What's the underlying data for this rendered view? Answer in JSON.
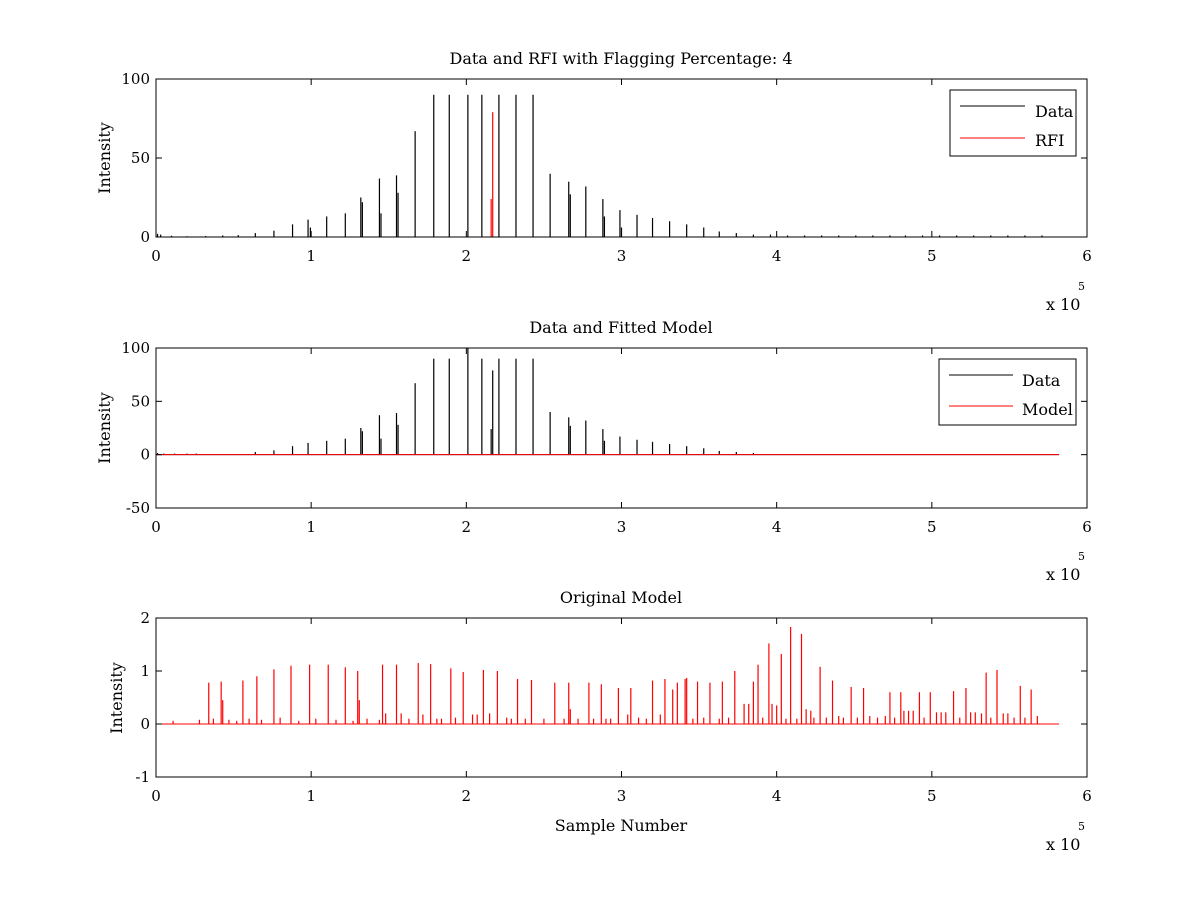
{
  "figure": {
    "background": "#ffffff",
    "axis_color": "#000000"
  },
  "chart_data": [
    {
      "type": "line",
      "title": "Data and RFI with Flagging Percentage: 4",
      "xlabel": "",
      "ylabel": "Intensity",
      "xlim": [
        0,
        600000
      ],
      "ylim": [
        0,
        100
      ],
      "xticks": [
        0,
        100000,
        200000,
        300000,
        400000,
        500000,
        600000
      ],
      "xtick_labels": [
        "0",
        "1",
        "2",
        "3",
        "4",
        "5",
        "6"
      ],
      "yticks": [
        0,
        50,
        100
      ],
      "ytick_labels": [
        "0",
        "50",
        "100"
      ],
      "x_multiplier": {
        "base": "x 10",
        "exponent": "5"
      },
      "legend": {
        "position": "top-right",
        "entries": [
          "Data",
          "RFI"
        ]
      },
      "grid": false,
      "baseline_end": 582000,
      "series": [
        {
          "name": "Data",
          "color": "#000000",
          "spikes": [
            [
              1000,
              2
            ],
            [
              3000,
              1.5
            ],
            [
              10000,
              0.8
            ],
            [
              20000,
              0.5
            ],
            [
              32000,
              0.6
            ],
            [
              43000,
              1
            ],
            [
              53000,
              1.2
            ],
            [
              64000,
              2.5
            ],
            [
              76000,
              4
            ],
            [
              88000,
              8
            ],
            [
              98000,
              11
            ],
            [
              99500,
              6
            ],
            [
              110000,
              13
            ],
            [
              122000,
              15
            ],
            [
              132000,
              25
            ],
            [
              133000,
              22
            ],
            [
              144000,
              37
            ],
            [
              145000,
              15
            ],
            [
              155000,
              39
            ],
            [
              156000,
              28
            ],
            [
              167000,
              67
            ],
            [
              179000,
              90
            ],
            [
              189000,
              90
            ],
            [
              201000,
              90
            ],
            [
              210000,
              90
            ],
            [
              221000,
              90
            ],
            [
              232000,
              90
            ],
            [
              243000,
              90
            ],
            [
              254000,
              40
            ],
            [
              266000,
              35
            ],
            [
              267000,
              27
            ],
            [
              277000,
              32
            ],
            [
              288000,
              24
            ],
            [
              289000,
              13
            ],
            [
              299000,
              17
            ],
            [
              300000,
              6
            ],
            [
              310000,
              14
            ],
            [
              320000,
              12
            ],
            [
              331000,
              10
            ],
            [
              342000,
              8
            ],
            [
              353000,
              6
            ],
            [
              363000,
              3.5
            ],
            [
              374000,
              2.5
            ],
            [
              385000,
              1.5
            ],
            [
              396000,
              1.5
            ],
            [
              407000,
              1
            ],
            [
              418000,
              1
            ],
            [
              429000,
              1
            ],
            [
              440000,
              1
            ],
            [
              451000,
              1
            ],
            [
              462000,
              1
            ],
            [
              473000,
              1
            ],
            [
              483000,
              1
            ],
            [
              494000,
              1
            ],
            [
              505000,
              1
            ],
            [
              516000,
              1
            ],
            [
              527000,
              1
            ],
            [
              538000,
              1
            ],
            [
              549000,
              1
            ],
            [
              560000,
              1
            ],
            [
              571000,
              1
            ]
          ]
        },
        {
          "name": "RFI",
          "color": "#ff0000",
          "spikes": [
            [
              216000,
              24
            ],
            [
              217000,
              79
            ]
          ]
        }
      ]
    },
    {
      "type": "line",
      "title": "Data and Fitted Model",
      "xlabel": "",
      "ylabel": "Intensity",
      "xlim": [
        0,
        600000
      ],
      "ylim": [
        -50,
        100
      ],
      "xticks": [
        0,
        100000,
        200000,
        300000,
        400000,
        500000,
        600000
      ],
      "xtick_labels": [
        "0",
        "1",
        "2",
        "3",
        "4",
        "5",
        "6"
      ],
      "yticks": [
        -50,
        0,
        50,
        100
      ],
      "ytick_labels": [
        "-50",
        "0",
        "50",
        "100"
      ],
      "x_multiplier": {
        "base": "x 10",
        "exponent": "5"
      },
      "legend": {
        "position": "top-right",
        "entries": [
          "Data",
          "Model"
        ]
      },
      "grid": false,
      "baseline_end": 582000,
      "series": [
        {
          "name": "Data",
          "color": "#000000",
          "spikes": [
            [
              1000,
              1.5
            ],
            [
              5000,
              1
            ],
            [
              12000,
              1
            ],
            [
              20000,
              1
            ],
            [
              26000,
              1
            ],
            [
              64000,
              2.5
            ],
            [
              76000,
              4
            ],
            [
              88000,
              8
            ],
            [
              98000,
              11
            ],
            [
              110000,
              13
            ],
            [
              122000,
              15
            ],
            [
              132000,
              25
            ],
            [
              133000,
              22
            ],
            [
              144000,
              37
            ],
            [
              145000,
              15
            ],
            [
              155000,
              39
            ],
            [
              156000,
              28
            ],
            [
              167000,
              67
            ],
            [
              179000,
              90
            ],
            [
              189000,
              90
            ],
            [
              201000,
              100
            ],
            [
              210000,
              90
            ],
            [
              216000,
              24
            ],
            [
              217000,
              79
            ],
            [
              221000,
              90
            ],
            [
              232000,
              90
            ],
            [
              243000,
              90
            ],
            [
              254000,
              40
            ],
            [
              266000,
              35
            ],
            [
              267000,
              27
            ],
            [
              277000,
              32
            ],
            [
              288000,
              24
            ],
            [
              289000,
              13
            ],
            [
              299000,
              17
            ],
            [
              310000,
              14
            ],
            [
              320000,
              12
            ],
            [
              331000,
              10
            ],
            [
              342000,
              8
            ],
            [
              353000,
              6
            ],
            [
              363000,
              3.5
            ],
            [
              374000,
              2.5
            ],
            [
              385000,
              1.5
            ]
          ]
        },
        {
          "name": "Model",
          "color": "#ff0000",
          "spikes": []
        }
      ]
    },
    {
      "type": "line",
      "title": "Original Model",
      "xlabel": "Sample Number",
      "ylabel": "Intensity",
      "xlim": [
        0,
        600000
      ],
      "ylim": [
        -1,
        2
      ],
      "xticks": [
        0,
        100000,
        200000,
        300000,
        400000,
        500000,
        600000
      ],
      "xtick_labels": [
        "0",
        "1",
        "2",
        "3",
        "4",
        "5",
        "6"
      ],
      "yticks": [
        -1,
        0,
        1,
        2
      ],
      "ytick_labels": [
        "-1",
        "0",
        "1",
        "2"
      ],
      "x_multiplier": {
        "base": "x 10",
        "exponent": "5"
      },
      "grid": false,
      "baseline_end": 582000,
      "series": [
        {
          "name": "",
          "color": "#ff0000",
          "spikes": [
            [
              11000,
              0.06
            ],
            [
              28000,
              0.08
            ],
            [
              34000,
              0.78
            ],
            [
              37000,
              0.1
            ],
            [
              42000,
              0.8
            ],
            [
              43000,
              0.45
            ],
            [
              47000,
              0.08
            ],
            [
              52000,
              0.06
            ],
            [
              56000,
              0.82
            ],
            [
              60000,
              0.1
            ],
            [
              65000,
              0.9
            ],
            [
              68000,
              0.08
            ],
            [
              76000,
              1.03
            ],
            [
              80000,
              0.12
            ],
            [
              87000,
              1.1
            ],
            [
              92000,
              0.06
            ],
            [
              99000,
              1.12
            ],
            [
              103000,
              0.1
            ],
            [
              111000,
              1.12
            ],
            [
              116000,
              0.08
            ],
            [
              122000,
              1.07
            ],
            [
              127000,
              0.06
            ],
            [
              130000,
              1.0
            ],
            [
              131000,
              0.45
            ],
            [
              136000,
              0.1
            ],
            [
              144000,
              0.08
            ],
            [
              146000,
              1.12
            ],
            [
              148000,
              0.2
            ],
            [
              155000,
              1.12
            ],
            [
              158000,
              0.2
            ],
            [
              163000,
              0.1
            ],
            [
              169000,
              1.15
            ],
            [
              172000,
              0.18
            ],
            [
              177000,
              1.13
            ],
            [
              181000,
              0.1
            ],
            [
              184000,
              0.1
            ],
            [
              190000,
              1.05
            ],
            [
              193000,
              0.12
            ],
            [
              198000,
              0.98
            ],
            [
              204000,
              0.18
            ],
            [
              207000,
              0.18
            ],
            [
              211000,
              1.02
            ],
            [
              215000,
              0.2
            ],
            [
              220000,
              1.0
            ],
            [
              226000,
              0.12
            ],
            [
              229000,
              0.1
            ],
            [
              233000,
              0.85
            ],
            [
              238000,
              0.1
            ],
            [
              242000,
              0.83
            ],
            [
              250000,
              0.1
            ],
            [
              257000,
              0.78
            ],
            [
              263000,
              0.1
            ],
            [
              266000,
              0.78
            ],
            [
              267000,
              0.28
            ],
            [
              272000,
              0.1
            ],
            [
              279000,
              0.78
            ],
            [
              282000,
              0.1
            ],
            [
              287000,
              0.75
            ],
            [
              290000,
              0.1
            ],
            [
              293000,
              0.1
            ],
            [
              298000,
              0.68
            ],
            [
              304000,
              0.18
            ],
            [
              306000,
              0.68
            ],
            [
              311000,
              0.12
            ],
            [
              316000,
              0.1
            ],
            [
              320000,
              0.82
            ],
            [
              325000,
              0.18
            ],
            [
              328000,
              0.85
            ],
            [
              333000,
              0.65
            ],
            [
              336000,
              0.78
            ],
            [
              341000,
              0.85
            ],
            [
              342000,
              0.87
            ],
            [
              346000,
              0.1
            ],
            [
              349000,
              0.8
            ],
            [
              353000,
              0.12
            ],
            [
              357000,
              0.78
            ],
            [
              363000,
              0.1
            ],
            [
              365000,
              0.8
            ],
            [
              369000,
              0.12
            ],
            [
              373000,
              1.0
            ],
            [
              379000,
              0.38
            ],
            [
              382000,
              0.38
            ],
            [
              385000,
              0.8
            ],
            [
              388000,
              1.12
            ],
            [
              391000,
              0.12
            ],
            [
              395000,
              1.52
            ],
            [
              397000,
              0.38
            ],
            [
              400000,
              0.35
            ],
            [
              403000,
              1.32
            ],
            [
              406000,
              0.1
            ],
            [
              409000,
              1.83
            ],
            [
              413000,
              0.1
            ],
            [
              416000,
              1.7
            ],
            [
              419000,
              0.28
            ],
            [
              422000,
              0.25
            ],
            [
              424000,
              0.12
            ],
            [
              428000,
              1.08
            ],
            [
              432000,
              0.12
            ],
            [
              436000,
              0.82
            ],
            [
              440000,
              0.15
            ],
            [
              443000,
              0.12
            ],
            [
              448000,
              0.7
            ],
            [
              452000,
              0.12
            ],
            [
              456000,
              0.68
            ],
            [
              460000,
              0.15
            ],
            [
              465000,
              0.12
            ],
            [
              470000,
              0.15
            ],
            [
              473000,
              0.6
            ],
            [
              476000,
              0.12
            ],
            [
              480000,
              0.6
            ],
            [
              482000,
              0.25
            ],
            [
              485000,
              0.25
            ],
            [
              488000,
              0.25
            ],
            [
              492000,
              0.6
            ],
            [
              495000,
              0.12
            ],
            [
              499000,
              0.6
            ],
            [
              503000,
              0.22
            ],
            [
              506000,
              0.22
            ],
            [
              509000,
              0.22
            ],
            [
              514000,
              0.62
            ],
            [
              518000,
              0.12
            ],
            [
              522000,
              0.68
            ],
            [
              525000,
              0.22
            ],
            [
              528000,
              0.22
            ],
            [
              532000,
              0.2
            ],
            [
              535000,
              0.97
            ],
            [
              538000,
              0.12
            ],
            [
              542000,
              1.02
            ],
            [
              546000,
              0.2
            ],
            [
              549000,
              0.2
            ],
            [
              553000,
              0.12
            ],
            [
              557000,
              0.72
            ],
            [
              560000,
              0.12
            ],
            [
              564000,
              0.65
            ],
            [
              568000,
              0.15
            ]
          ]
        }
      ]
    }
  ]
}
